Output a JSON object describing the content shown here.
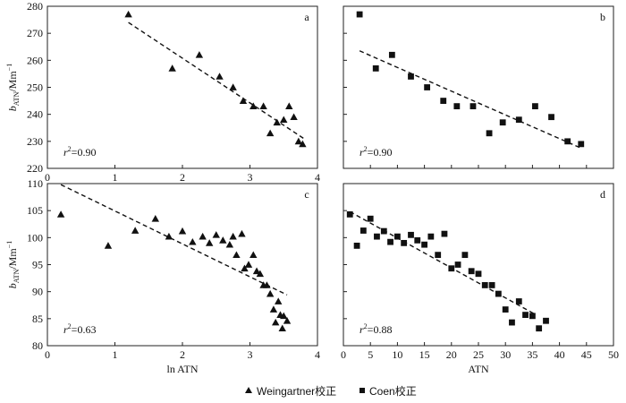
{
  "chart_data": [
    {
      "panel": "a",
      "type": "scatter",
      "marker": "triangle",
      "xlim": [
        0,
        4
      ],
      "ylim": [
        220,
        280
      ],
      "x_ticks": [
        0,
        1,
        2,
        3,
        4
      ],
      "y_ticks": [
        220,
        230,
        240,
        250,
        260,
        270,
        280
      ],
      "ylabel_main": "b",
      "ylabel_sub": "ATN",
      "ylabel_unit": "/Mm",
      "ylabel_sup": "−1",
      "r2_prefix": "r",
      "r2_sup": "2",
      "r2_value": "=0.90",
      "points": [
        {
          "x": 1.2,
          "y": 277
        },
        {
          "x": 1.85,
          "y": 257
        },
        {
          "x": 2.25,
          "y": 262
        },
        {
          "x": 2.55,
          "y": 254
        },
        {
          "x": 2.75,
          "y": 250
        },
        {
          "x": 2.9,
          "y": 245
        },
        {
          "x": 3.05,
          "y": 243
        },
        {
          "x": 3.2,
          "y": 243
        },
        {
          "x": 3.3,
          "y": 233
        },
        {
          "x": 3.4,
          "y": 237
        },
        {
          "x": 3.5,
          "y": 238
        },
        {
          "x": 3.58,
          "y": 243
        },
        {
          "x": 3.65,
          "y": 239
        },
        {
          "x": 3.72,
          "y": 230
        },
        {
          "x": 3.78,
          "y": 229
        }
      ],
      "fit_line": [
        {
          "x": 1.2,
          "y": 274
        },
        {
          "x": 3.8,
          "y": 231
        }
      ]
    },
    {
      "panel": "b",
      "type": "scatter",
      "marker": "square",
      "xlim": [
        0,
        50
      ],
      "ylim": [
        220,
        280
      ],
      "x_ticks": [
        0,
        5,
        10,
        15,
        20,
        25,
        30,
        35,
        40,
        45,
        50
      ],
      "y_ticks": [
        220,
        230,
        240,
        250,
        260,
        270,
        280
      ],
      "r2_prefix": "r",
      "r2_sup": "2",
      "r2_value": "=0.90",
      "points": [
        {
          "x": 3,
          "y": 277
        },
        {
          "x": 6,
          "y": 257
        },
        {
          "x": 9,
          "y": 262
        },
        {
          "x": 12.5,
          "y": 254
        },
        {
          "x": 15.5,
          "y": 250
        },
        {
          "x": 18.5,
          "y": 245
        },
        {
          "x": 21,
          "y": 243
        },
        {
          "x": 24,
          "y": 243
        },
        {
          "x": 27,
          "y": 233
        },
        {
          "x": 29.5,
          "y": 237
        },
        {
          "x": 32.5,
          "y": 238
        },
        {
          "x": 35.5,
          "y": 243
        },
        {
          "x": 38.5,
          "y": 239
        },
        {
          "x": 41.5,
          "y": 230
        },
        {
          "x": 44,
          "y": 229
        }
      ],
      "fit_line": [
        {
          "x": 3,
          "y": 263.5
        },
        {
          "x": 44,
          "y": 227.5
        }
      ]
    },
    {
      "panel": "c",
      "type": "scatter",
      "marker": "triangle",
      "xlim": [
        0,
        4
      ],
      "ylim": [
        80,
        110
      ],
      "x_ticks": [
        0,
        1,
        2,
        3,
        4
      ],
      "y_ticks": [
        80,
        85,
        90,
        95,
        100,
        105,
        110
      ],
      "xlabel": "ln ATN",
      "ylabel_main": "b",
      "ylabel_sub": "ATN",
      "ylabel_unit": "/Mm",
      "ylabel_sup": "−1",
      "r2_prefix": "r",
      "r2_sup": "2",
      "r2_value": "=0.63",
      "points": [
        {
          "x": 0.2,
          "y": 104.3
        },
        {
          "x": 0.9,
          "y": 98.5
        },
        {
          "x": 1.3,
          "y": 101.3
        },
        {
          "x": 1.6,
          "y": 103.5
        },
        {
          "x": 1.8,
          "y": 100.2
        },
        {
          "x": 2.0,
          "y": 101.2
        },
        {
          "x": 2.15,
          "y": 99.2
        },
        {
          "x": 2.3,
          "y": 100.2
        },
        {
          "x": 2.4,
          "y": 99.0
        },
        {
          "x": 2.5,
          "y": 100.5
        },
        {
          "x": 2.6,
          "y": 99.5
        },
        {
          "x": 2.7,
          "y": 98.7
        },
        {
          "x": 2.75,
          "y": 100.2
        },
        {
          "x": 2.8,
          "y": 96.8
        },
        {
          "x": 2.88,
          "y": 100.7
        },
        {
          "x": 2.92,
          "y": 94.3
        },
        {
          "x": 2.98,
          "y": 95.0
        },
        {
          "x": 3.05,
          "y": 96.8
        },
        {
          "x": 3.1,
          "y": 93.8
        },
        {
          "x": 3.15,
          "y": 93.3
        },
        {
          "x": 3.2,
          "y": 91.2
        },
        {
          "x": 3.25,
          "y": 91.2
        },
        {
          "x": 3.3,
          "y": 89.6
        },
        {
          "x": 3.35,
          "y": 86.7
        },
        {
          "x": 3.38,
          "y": 84.3
        },
        {
          "x": 3.42,
          "y": 88.2
        },
        {
          "x": 3.45,
          "y": 85.7
        },
        {
          "x": 3.5,
          "y": 85.5
        },
        {
          "x": 3.48,
          "y": 83.2
        },
        {
          "x": 3.55,
          "y": 84.6
        }
      ],
      "fit_line": [
        {
          "x": 0.2,
          "y": 109.8
        },
        {
          "x": 3.55,
          "y": 89.4
        }
      ]
    },
    {
      "panel": "d",
      "type": "scatter",
      "marker": "square",
      "xlim": [
        0,
        50
      ],
      "ylim": [
        80,
        110
      ],
      "x_ticks": [
        0,
        5,
        10,
        15,
        20,
        25,
        30,
        35,
        40,
        45,
        50
      ],
      "y_ticks": [
        80,
        85,
        90,
        95,
        100,
        105,
        110
      ],
      "xlabel": "ATN",
      "r2_prefix": "r",
      "r2_sup": "2",
      "r2_value": "=0.88",
      "points": [
        {
          "x": 1.2,
          "y": 104.3
        },
        {
          "x": 2.5,
          "y": 98.5
        },
        {
          "x": 3.7,
          "y": 101.3
        },
        {
          "x": 5,
          "y": 103.5
        },
        {
          "x": 6.2,
          "y": 100.2
        },
        {
          "x": 7.5,
          "y": 101.2
        },
        {
          "x": 8.7,
          "y": 99.2
        },
        {
          "x": 10,
          "y": 100.2
        },
        {
          "x": 11.2,
          "y": 99.0
        },
        {
          "x": 12.5,
          "y": 100.5
        },
        {
          "x": 13.7,
          "y": 99.5
        },
        {
          "x": 15,
          "y": 98.7
        },
        {
          "x": 16.2,
          "y": 100.2
        },
        {
          "x": 17.5,
          "y": 96.8
        },
        {
          "x": 18.7,
          "y": 100.7
        },
        {
          "x": 20,
          "y": 94.3
        },
        {
          "x": 21.2,
          "y": 95.0
        },
        {
          "x": 22.5,
          "y": 96.8
        },
        {
          "x": 23.7,
          "y": 93.8
        },
        {
          "x": 25,
          "y": 93.3
        },
        {
          "x": 26.2,
          "y": 91.2
        },
        {
          "x": 27.5,
          "y": 91.2
        },
        {
          "x": 28.7,
          "y": 89.6
        },
        {
          "x": 30,
          "y": 86.7
        },
        {
          "x": 31.2,
          "y": 84.3
        },
        {
          "x": 32.5,
          "y": 88.2
        },
        {
          "x": 33.7,
          "y": 85.7
        },
        {
          "x": 35,
          "y": 85.5
        },
        {
          "x": 36.2,
          "y": 83.2
        },
        {
          "x": 37.5,
          "y": 84.6
        }
      ],
      "fit_line": [
        {
          "x": 1.2,
          "y": 104.8
        },
        {
          "x": 35.5,
          "y": 85.8
        }
      ]
    }
  ],
  "legend": {
    "items": [
      {
        "label": "Weingartner校正",
        "marker": "triangle"
      },
      {
        "label": "Coen校正",
        "marker": "square"
      }
    ]
  }
}
